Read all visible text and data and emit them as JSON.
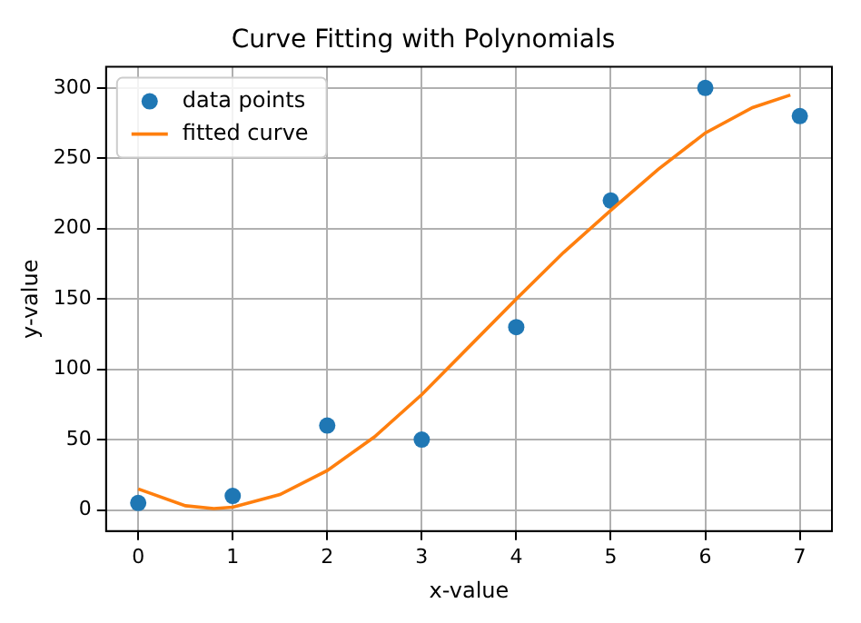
{
  "chart_data": {
    "type": "scatter",
    "title": "Curve Fitting with Polynomials",
    "xlabel": "x-value",
    "ylabel": "y-value",
    "xlim": [
      -0.34,
      7.34
    ],
    "xticks": [
      0,
      1,
      2,
      3,
      4,
      5,
      6,
      7
    ],
    "ylim": [
      -15,
      315
    ],
    "yticks": [
      0,
      50,
      100,
      150,
      200,
      250,
      300
    ],
    "grid": true,
    "legend": "top left",
    "series": [
      {
        "name": "data points",
        "type": "scatter",
        "marker": "circle",
        "color": "#1f77b4",
        "x": [
          0,
          1,
          2,
          3,
          4,
          5,
          6,
          7
        ],
        "values": [
          5,
          10,
          60,
          50,
          130,
          220,
          300,
          280
        ]
      },
      {
        "name": "fitted curve",
        "type": "line",
        "marker": "none",
        "line_style": "solid",
        "color": "#ff7f0e",
        "x": [
          0,
          0.5,
          0.8,
          1,
          1.5,
          2,
          2.5,
          3,
          3.5,
          4,
          4.5,
          5,
          5.5,
          6,
          6.5,
          6.9
        ],
        "values": [
          15,
          3,
          1,
          2,
          11,
          28,
          52,
          82,
          116,
          150,
          183,
          213,
          242,
          268,
          286,
          295
        ]
      }
    ]
  }
}
